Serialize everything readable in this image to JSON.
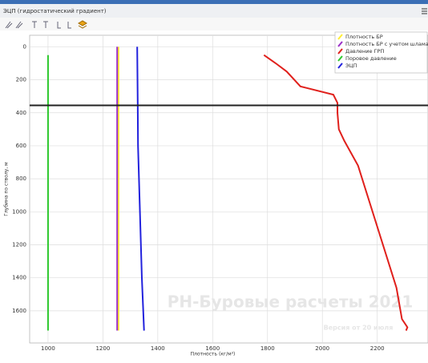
{
  "window": {
    "title": "ЭЦП (гидростатический градиент)"
  },
  "chart_data": {
    "type": "line",
    "x_label": "Плотность (кг/м³)",
    "y_label": "Глубина по стволу, м",
    "watermark": "РН-Буровые расчеты 2021",
    "version": "Версия от 20 июля",
    "xlim": [
      933,
      2385
    ],
    "xticks": [
      1000,
      1200,
      1400,
      1600,
      1800,
      2000,
      2200
    ],
    "ylim": [
      -70,
      1795
    ],
    "yticks": [
      0,
      200,
      400,
      600,
      800,
      1000,
      1200,
      1400,
      1600
    ],
    "y_inverted": true,
    "grid": true,
    "legend": "upper right",
    "marker_depth": 355,
    "series": [
      {
        "name": "Плотность БР",
        "color": "#ffee33",
        "x": [
          1257,
          1257
        ],
        "y": [
          0,
          1720
        ]
      },
      {
        "name": "Плотность БР с учетом шлама",
        "color": "#9b30c8",
        "x": [
          1252,
          1252
        ],
        "y": [
          0,
          1720
        ]
      },
      {
        "name": "Давление ГРП",
        "color": "#e0201c",
        "x": [
          1787,
          1830,
          1870,
          1920,
          2040,
          2055,
          2055,
          2060,
          2080,
          2130,
          2270,
          2290,
          2310,
          2305
        ],
        "y": [
          50,
          100,
          150,
          240,
          290,
          340,
          400,
          500,
          570,
          720,
          1460,
          1650,
          1700,
          1720
        ]
      },
      {
        "name": "Поровое давление",
        "color": "#2ec82e",
        "x": [
          1000,
          1000
        ],
        "y": [
          50,
          1720
        ]
      },
      {
        "name": "ЭЦП",
        "color": "#2222dd",
        "x": [
          1325,
          1327,
          1328,
          1335,
          1342,
          1350
        ],
        "y": [
          0,
          360,
          600,
          1000,
          1400,
          1720
        ]
      }
    ]
  }
}
